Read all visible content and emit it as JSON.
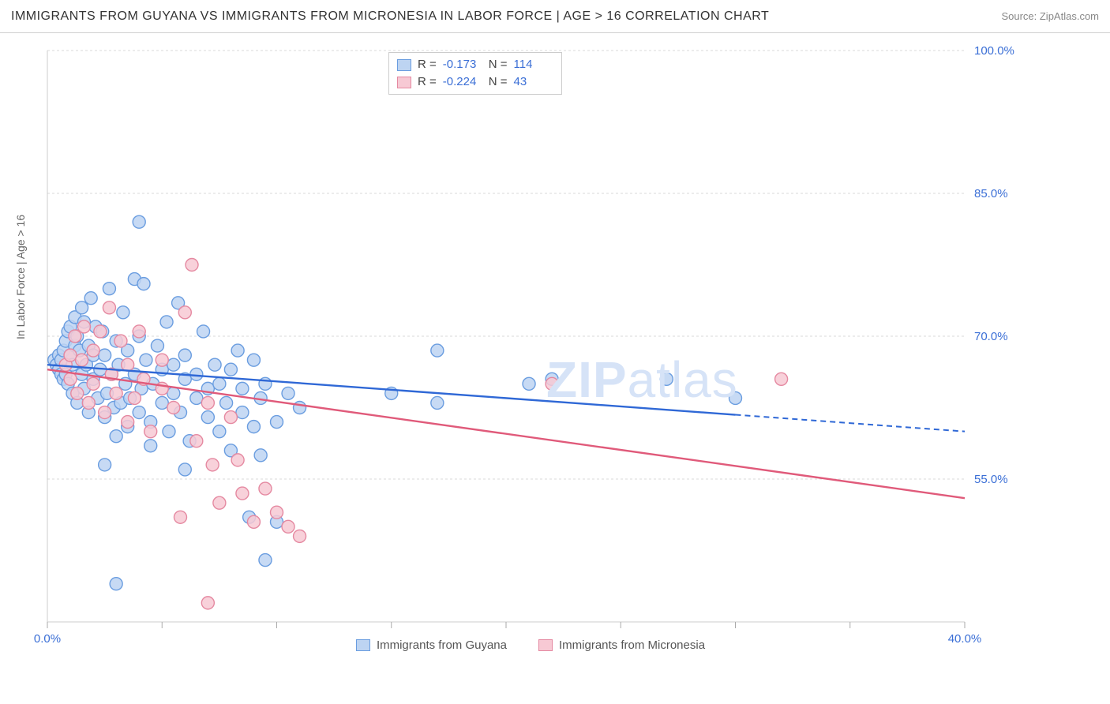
{
  "title": "IMMIGRANTS FROM GUYANA VS IMMIGRANTS FROM MICRONESIA IN LABOR FORCE | AGE > 16 CORRELATION CHART",
  "source": "Source: ZipAtlas.com",
  "y_axis_label": "In Labor Force | Age > 16",
  "watermark_bold": "ZIP",
  "watermark_rest": "atlas",
  "chart": {
    "type": "scatter-with-regression",
    "background_color": "#ffffff",
    "grid_color": "#d8d8d8",
    "border_color": "#cccccc",
    "xlim": [
      0.0,
      40.0
    ],
    "ylim": [
      40.0,
      100.0
    ],
    "x_tick_positions": [
      0.0,
      5.0,
      10.0,
      15.0,
      20.0,
      25.0,
      30.0,
      35.0,
      40.0
    ],
    "x_tick_labels": {
      "0": "0.0%",
      "40": "40.0%"
    },
    "y_tick_positions": [
      55.0,
      70.0,
      85.0,
      100.0
    ],
    "y_tick_labels": {
      "55": "55.0%",
      "70": "70.0%",
      "85": "85.0%",
      "100": "100.0%"
    },
    "tick_fontsize": 15,
    "tick_color": "#3b6fd6",
    "axis_label_fontsize": 14,
    "axis_label_color": "#666666"
  },
  "series": [
    {
      "name": "Immigrants from Guyana",
      "color_fill": "#bdd4f2",
      "color_stroke": "#6a9de0",
      "line_color": "#2f68d6",
      "marker_radius": 8,
      "r_value": "-0.173",
      "n_value": "114",
      "regression": {
        "x1": 0.0,
        "y1": 67.0,
        "x2": 40.0,
        "y2": 60.0,
        "solid_until_x": 30.0
      },
      "points": [
        [
          0.3,
          67.5
        ],
        [
          0.4,
          67.0
        ],
        [
          0.5,
          68.0
        ],
        [
          0.5,
          66.5
        ],
        [
          0.6,
          67.5
        ],
        [
          0.6,
          66.0
        ],
        [
          0.7,
          68.5
        ],
        [
          0.7,
          65.5
        ],
        [
          0.8,
          69.5
        ],
        [
          0.8,
          66.0
        ],
        [
          0.9,
          70.5
        ],
        [
          0.9,
          65.0
        ],
        [
          1.0,
          68.0
        ],
        [
          1.0,
          71.0
        ],
        [
          1.1,
          67.0
        ],
        [
          1.1,
          64.0
        ],
        [
          1.2,
          69.0
        ],
        [
          1.2,
          72.0
        ],
        [
          1.3,
          63.0
        ],
        [
          1.3,
          70.0
        ],
        [
          1.4,
          68.5
        ],
        [
          1.5,
          66.0
        ],
        [
          1.5,
          73.0
        ],
        [
          1.6,
          64.5
        ],
        [
          1.6,
          71.5
        ],
        [
          1.7,
          67.0
        ],
        [
          1.8,
          62.0
        ],
        [
          1.8,
          69.0
        ],
        [
          1.9,
          74.0
        ],
        [
          2.0,
          65.5
        ],
        [
          2.0,
          68.0
        ],
        [
          2.1,
          71.0
        ],
        [
          2.2,
          63.5
        ],
        [
          2.3,
          66.5
        ],
        [
          2.4,
          70.5
        ],
        [
          2.5,
          61.5
        ],
        [
          2.5,
          68.0
        ],
        [
          2.6,
          64.0
        ],
        [
          2.7,
          75.0
        ],
        [
          2.8,
          66.0
        ],
        [
          2.9,
          62.5
        ],
        [
          3.0,
          69.5
        ],
        [
          3.0,
          59.5
        ],
        [
          3.1,
          67.0
        ],
        [
          3.2,
          63.0
        ],
        [
          3.3,
          72.5
        ],
        [
          3.4,
          65.0
        ],
        [
          3.5,
          60.5
        ],
        [
          3.5,
          68.5
        ],
        [
          3.6,
          63.5
        ],
        [
          3.8,
          76.0
        ],
        [
          3.8,
          66.0
        ],
        [
          4.0,
          62.0
        ],
        [
          4.0,
          70.0
        ],
        [
          4.1,
          64.5
        ],
        [
          4.2,
          75.5
        ],
        [
          4.3,
          67.5
        ],
        [
          4.5,
          61.0
        ],
        [
          4.5,
          58.5
        ],
        [
          4.6,
          65.0
        ],
        [
          4.8,
          69.0
        ],
        [
          5.0,
          63.0
        ],
        [
          5.0,
          66.5
        ],
        [
          5.2,
          71.5
        ],
        [
          5.3,
          60.0
        ],
        [
          5.5,
          67.0
        ],
        [
          5.5,
          64.0
        ],
        [
          5.7,
          73.5
        ],
        [
          5.8,
          62.0
        ],
        [
          6.0,
          68.0
        ],
        [
          6.0,
          65.5
        ],
        [
          6.2,
          59.0
        ],
        [
          6.5,
          66.0
        ],
        [
          6.5,
          63.5
        ],
        [
          6.8,
          70.5
        ],
        [
          7.0,
          64.5
        ],
        [
          7.0,
          61.5
        ],
        [
          7.3,
          67.0
        ],
        [
          7.5,
          60.0
        ],
        [
          7.5,
          65.0
        ],
        [
          7.8,
          63.0
        ],
        [
          8.0,
          58.0
        ],
        [
          8.0,
          66.5
        ],
        [
          8.3,
          68.5
        ],
        [
          8.5,
          62.0
        ],
        [
          8.5,
          64.5
        ],
        [
          8.8,
          51.0
        ],
        [
          9.0,
          60.5
        ],
        [
          9.0,
          67.5
        ],
        [
          9.3,
          63.5
        ],
        [
          9.5,
          46.5
        ],
        [
          9.5,
          65.0
        ],
        [
          10.0,
          61.0
        ],
        [
          10.0,
          50.5
        ],
        [
          10.5,
          64.0
        ],
        [
          11.0,
          62.5
        ],
        [
          4.0,
          82.0
        ],
        [
          3.0,
          44.0
        ],
        [
          2.5,
          56.5
        ],
        [
          6.0,
          56.0
        ],
        [
          9.3,
          57.5
        ],
        [
          15.0,
          64.0
        ],
        [
          17.0,
          63.0
        ],
        [
          17.0,
          68.5
        ],
        [
          21.0,
          65.0
        ],
        [
          22.0,
          65.5
        ],
        [
          27.0,
          65.5
        ],
        [
          30.0,
          63.5
        ]
      ]
    },
    {
      "name": "Immigrants from Micronesia",
      "color_fill": "#f7c9d4",
      "color_stroke": "#e589a1",
      "line_color": "#e05a7a",
      "marker_radius": 8,
      "r_value": "-0.224",
      "n_value": "43",
      "regression": {
        "x1": 0.0,
        "y1": 66.5,
        "x2": 40.0,
        "y2": 53.0,
        "solid_until_x": 40.0
      },
      "points": [
        [
          0.8,
          67.0
        ],
        [
          1.0,
          68.0
        ],
        [
          1.0,
          65.5
        ],
        [
          1.2,
          70.0
        ],
        [
          1.3,
          64.0
        ],
        [
          1.5,
          67.5
        ],
        [
          1.6,
          71.0
        ],
        [
          1.8,
          63.0
        ],
        [
          2.0,
          68.5
        ],
        [
          2.0,
          65.0
        ],
        [
          2.3,
          70.5
        ],
        [
          2.5,
          62.0
        ],
        [
          2.7,
          73.0
        ],
        [
          2.8,
          66.0
        ],
        [
          3.0,
          64.0
        ],
        [
          3.2,
          69.5
        ],
        [
          3.5,
          61.0
        ],
        [
          3.5,
          67.0
        ],
        [
          3.8,
          63.5
        ],
        [
          4.0,
          70.5
        ],
        [
          4.2,
          65.5
        ],
        [
          4.5,
          60.0
        ],
        [
          5.0,
          64.5
        ],
        [
          5.0,
          67.5
        ],
        [
          5.5,
          62.5
        ],
        [
          6.0,
          72.5
        ],
        [
          6.3,
          77.5
        ],
        [
          6.5,
          59.0
        ],
        [
          7.0,
          63.0
        ],
        [
          7.2,
          56.5
        ],
        [
          7.5,
          52.5
        ],
        [
          8.0,
          61.5
        ],
        [
          8.3,
          57.0
        ],
        [
          8.5,
          53.5
        ],
        [
          9.0,
          50.5
        ],
        [
          9.5,
          54.0
        ],
        [
          10.0,
          51.5
        ],
        [
          10.5,
          50.0
        ],
        [
          11.0,
          49.0
        ],
        [
          7.0,
          42.0
        ],
        [
          5.8,
          51.0
        ],
        [
          22.0,
          65.0
        ],
        [
          32.0,
          65.5
        ]
      ]
    }
  ],
  "legend_bottom": [
    {
      "label": "Immigrants from Guyana",
      "fill": "#bdd4f2",
      "stroke": "#6a9de0"
    },
    {
      "label": "Immigrants from Micronesia",
      "fill": "#f7c9d4",
      "stroke": "#e589a1"
    }
  ],
  "stats_legend": {
    "r_label": "R =",
    "n_label": "N ="
  }
}
